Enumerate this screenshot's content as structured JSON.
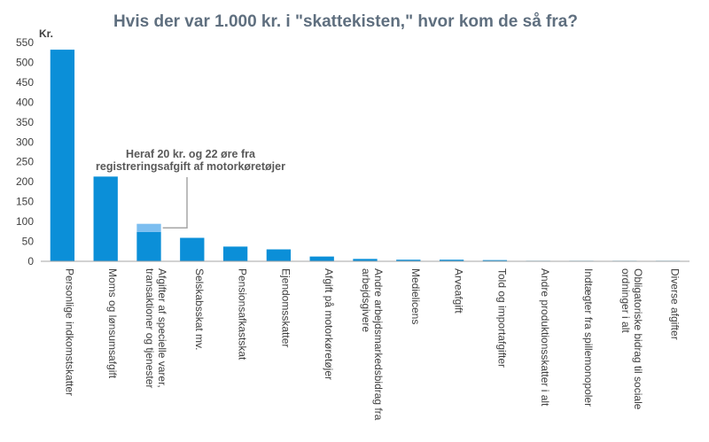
{
  "chart_data": {
    "type": "bar",
    "title": "Hvis der var 1.000 kr. i \"skattekisten,\"  hvor kom de så fra?",
    "ylabel": "Kr.",
    "ylim": [
      0,
      550
    ],
    "yticks": [
      0,
      50,
      100,
      150,
      200,
      250,
      300,
      350,
      400,
      450,
      500,
      550
    ],
    "grid": false,
    "categories": [
      [
        "Personlige indkomstskatter"
      ],
      [
        "Moms og lønsumsafgift"
      ],
      [
        "Afgifter af specielle varer,",
        "transaktioner og tjenester"
      ],
      [
        "Selskabsskat mv."
      ],
      [
        "Pensionsafkastskat"
      ],
      [
        "Ejendomsskatter"
      ],
      [
        "Afgift på motorkøretøjer"
      ],
      [
        "Andre arbejdsmarkedsbidrag fra",
        "arbejdsgivere"
      ],
      [
        "Medielicens"
      ],
      [
        "Arveafgift"
      ],
      [
        "Told og importafgifter"
      ],
      [
        "Andre produktionsskatter i alt"
      ],
      [
        "Indtægter fra spillemonopoler"
      ],
      [
        "Obligatoriske bidrag til sociale",
        "ordninger i alt"
      ],
      [
        "Diverse afgifter"
      ]
    ],
    "series": [
      {
        "values": [
          532,
          213,
          74,
          59,
          37,
          30,
          12,
          6,
          4,
          4,
          3,
          1,
          0.5,
          0.3,
          0.2
        ],
        "color": "#0b8fd8"
      },
      {
        "values": [
          0,
          0,
          20.22,
          0,
          0,
          0,
          0,
          0,
          0,
          0,
          0,
          0,
          0,
          0,
          0
        ],
        "color": "#7cbef0"
      }
    ],
    "annotation": {
      "lines": [
        "Heraf 20 kr. og 22 øre fra",
        "registreringsafgift af motorkøretøjer"
      ],
      "target_category_index": 2
    },
    "axis_color": "#a6a6a6"
  }
}
